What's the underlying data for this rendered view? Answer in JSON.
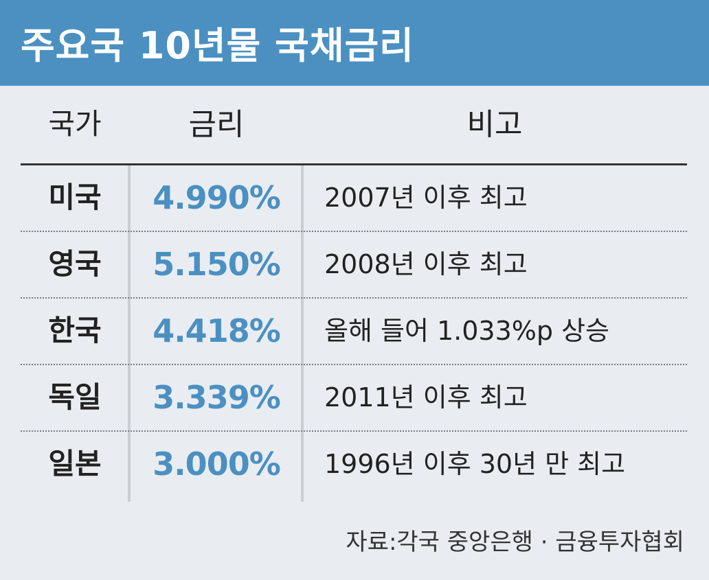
{
  "header": {
    "title": "주요국 10년물 국채금리"
  },
  "table": {
    "columns": [
      "국가",
      "금리",
      "비고"
    ],
    "rows": [
      [
        "미국",
        "4.990%",
        "2007년 이후 최고"
      ],
      [
        "영국",
        "5.150%",
        "2008년 이후 최고"
      ],
      [
        "한국",
        "4.418%",
        "올해 들어 1.033%p 상승"
      ],
      [
        "독일",
        "3.339%",
        "2011년 이후 최고"
      ],
      [
        "일본",
        "3.000%",
        "1996년 이후 30년 만 최고"
      ]
    ]
  },
  "footer": {
    "source": "자료:각국 중앙은행 · 금융투자협회"
  }
}
